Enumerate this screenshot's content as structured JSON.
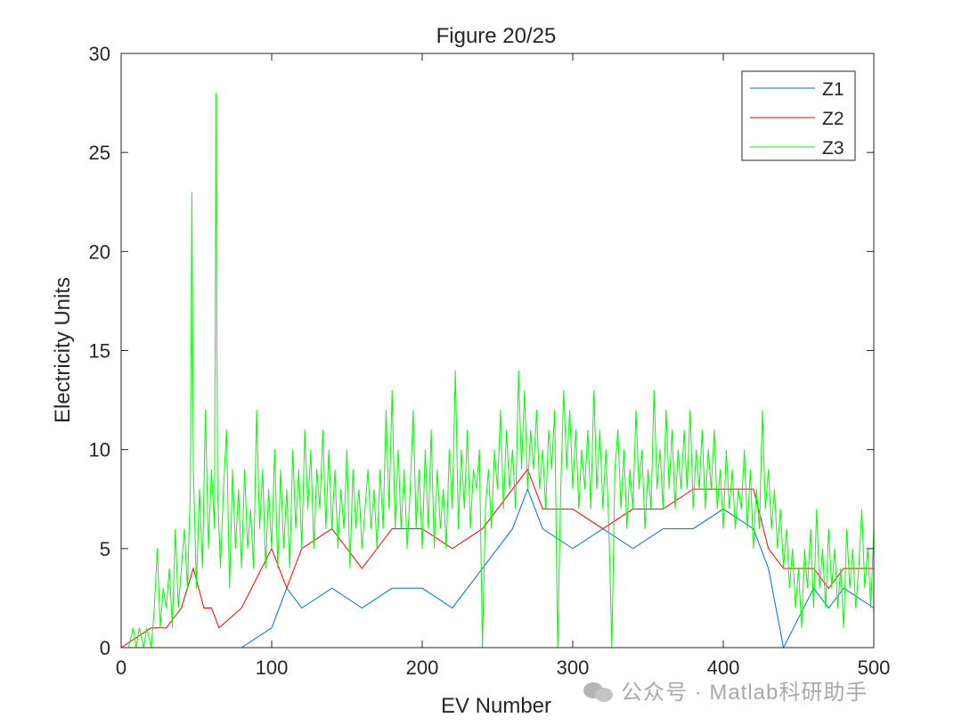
{
  "chart_data": {
    "type": "line",
    "title": "Figure 20/25",
    "xlabel": "EV Number",
    "ylabel": "Electricity Units",
    "xlim": [
      0,
      500
    ],
    "ylim": [
      0,
      30
    ],
    "xticks": [
      "0",
      "100",
      "200",
      "300",
      "400",
      "500"
    ],
    "yticks": [
      "0",
      "5",
      "10",
      "15",
      "20",
      "25",
      "30"
    ],
    "grid": false,
    "legend_position": "top-right",
    "series": [
      {
        "name": "Z1",
        "color": "#0072BD",
        "points": [
          [
            0,
            0
          ],
          [
            20,
            0
          ],
          [
            40,
            0
          ],
          [
            60,
            0
          ],
          [
            80,
            0
          ],
          [
            100,
            1
          ],
          [
            110,
            3
          ],
          [
            120,
            2
          ],
          [
            140,
            3
          ],
          [
            160,
            2
          ],
          [
            180,
            3
          ],
          [
            200,
            3
          ],
          [
            220,
            2
          ],
          [
            240,
            4
          ],
          [
            250,
            5
          ],
          [
            260,
            6
          ],
          [
            270,
            8
          ],
          [
            280,
            6
          ],
          [
            300,
            5
          ],
          [
            320,
            6
          ],
          [
            340,
            5
          ],
          [
            360,
            6
          ],
          [
            380,
            6
          ],
          [
            400,
            7
          ],
          [
            420,
            6
          ],
          [
            430,
            4
          ],
          [
            440,
            0
          ],
          [
            460,
            3
          ],
          [
            470,
            2
          ],
          [
            480,
            3
          ],
          [
            500,
            2
          ]
        ]
      },
      {
        "name": "Z2",
        "color": "#FF0000",
        "points": [
          [
            0,
            0
          ],
          [
            20,
            1
          ],
          [
            30,
            1
          ],
          [
            40,
            2
          ],
          [
            48,
            4
          ],
          [
            55,
            2
          ],
          [
            60,
            2
          ],
          [
            65,
            1
          ],
          [
            80,
            2
          ],
          [
            100,
            5
          ],
          [
            110,
            3
          ],
          [
            120,
            5
          ],
          [
            140,
            6
          ],
          [
            160,
            4
          ],
          [
            180,
            6
          ],
          [
            200,
            6
          ],
          [
            220,
            5
          ],
          [
            240,
            6
          ],
          [
            250,
            7
          ],
          [
            260,
            8
          ],
          [
            270,
            9
          ],
          [
            280,
            7
          ],
          [
            300,
            7
          ],
          [
            320,
            6
          ],
          [
            340,
            7
          ],
          [
            360,
            7
          ],
          [
            380,
            8
          ],
          [
            400,
            8
          ],
          [
            420,
            8
          ],
          [
            430,
            5
          ],
          [
            440,
            4
          ],
          [
            460,
            4
          ],
          [
            470,
            3
          ],
          [
            480,
            4
          ],
          [
            500,
            4
          ]
        ]
      },
      {
        "name": "Z3",
        "color": "#00FF00",
        "points": [
          [
            0,
            0
          ],
          [
            5,
            0
          ],
          [
            8,
            1
          ],
          [
            10,
            0
          ],
          [
            12,
            1
          ],
          [
            15,
            0
          ],
          [
            17,
            1
          ],
          [
            20,
            0
          ],
          [
            22,
            2
          ],
          [
            24,
            5
          ],
          [
            26,
            1
          ],
          [
            28,
            3
          ],
          [
            30,
            2
          ],
          [
            32,
            4
          ],
          [
            34,
            1
          ],
          [
            36,
            6
          ],
          [
            38,
            2
          ],
          [
            40,
            4
          ],
          [
            42,
            6
          ],
          [
            44,
            3
          ],
          [
            46,
            8
          ],
          [
            47,
            23
          ],
          [
            48,
            9
          ],
          [
            50,
            3
          ],
          [
            52,
            8
          ],
          [
            54,
            4
          ],
          [
            56,
            12
          ],
          [
            58,
            5
          ],
          [
            60,
            9
          ],
          [
            62,
            6
          ],
          [
            63,
            28
          ],
          [
            64,
            8
          ],
          [
            66,
            4
          ],
          [
            68,
            8
          ],
          [
            70,
            11
          ],
          [
            72,
            3
          ],
          [
            74,
            9
          ],
          [
            76,
            5
          ],
          [
            78,
            8
          ],
          [
            80,
            4
          ],
          [
            82,
            9
          ],
          [
            84,
            5
          ],
          [
            86,
            7
          ],
          [
            88,
            4
          ],
          [
            90,
            12
          ],
          [
            92,
            6
          ],
          [
            94,
            9
          ],
          [
            96,
            4
          ],
          [
            98,
            8
          ],
          [
            100,
            5
          ],
          [
            102,
            10
          ],
          [
            104,
            4
          ],
          [
            106,
            9
          ],
          [
            108,
            5
          ],
          [
            110,
            8
          ],
          [
            112,
            4
          ],
          [
            114,
            10
          ],
          [
            116,
            6
          ],
          [
            118,
            9
          ],
          [
            120,
            5
          ],
          [
            122,
            11
          ],
          [
            124,
            7
          ],
          [
            126,
            10
          ],
          [
            128,
            5
          ],
          [
            130,
            9
          ],
          [
            132,
            7
          ],
          [
            134,
            11
          ],
          [
            136,
            6
          ],
          [
            138,
            10
          ],
          [
            140,
            6
          ],
          [
            142,
            9
          ],
          [
            144,
            5
          ],
          [
            146,
            8
          ],
          [
            148,
            6
          ],
          [
            150,
            10
          ],
          [
            152,
            4
          ],
          [
            154,
            9
          ],
          [
            156,
            6
          ],
          [
            158,
            8
          ],
          [
            160,
            5
          ],
          [
            162,
            7
          ],
          [
            164,
            9
          ],
          [
            166,
            6
          ],
          [
            168,
            8
          ],
          [
            170,
            5
          ],
          [
            172,
            9
          ],
          [
            174,
            6
          ],
          [
            176,
            12
          ],
          [
            178,
            7
          ],
          [
            180,
            13
          ],
          [
            182,
            6
          ],
          [
            184,
            10
          ],
          [
            186,
            6
          ],
          [
            188,
            9
          ],
          [
            190,
            5
          ],
          [
            192,
            8
          ],
          [
            194,
            12
          ],
          [
            196,
            6
          ],
          [
            198,
            9
          ],
          [
            200,
            5
          ],
          [
            202,
            10
          ],
          [
            204,
            6
          ],
          [
            206,
            11
          ],
          [
            208,
            5
          ],
          [
            210,
            9
          ],
          [
            212,
            6
          ],
          [
            214,
            8
          ],
          [
            216,
            5
          ],
          [
            218,
            10
          ],
          [
            220,
            7
          ],
          [
            222,
            14
          ],
          [
            224,
            6
          ],
          [
            226,
            10
          ],
          [
            228,
            7
          ],
          [
            230,
            11
          ],
          [
            232,
            6
          ],
          [
            234,
            9
          ],
          [
            236,
            8
          ],
          [
            238,
            10
          ],
          [
            240,
            0
          ],
          [
            242,
            7
          ],
          [
            244,
            9
          ],
          [
            246,
            6
          ],
          [
            248,
            10
          ],
          [
            250,
            8
          ],
          [
            252,
            12
          ],
          [
            254,
            7
          ],
          [
            256,
            11
          ],
          [
            258,
            8
          ],
          [
            260,
            10
          ],
          [
            262,
            7
          ],
          [
            264,
            14
          ],
          [
            266,
            9
          ],
          [
            268,
            13
          ],
          [
            270,
            8
          ],
          [
            272,
            11
          ],
          [
            274,
            9
          ],
          [
            276,
            12
          ],
          [
            278,
            8
          ],
          [
            280,
            10
          ],
          [
            282,
            7
          ],
          [
            284,
            11
          ],
          [
            286,
            9
          ],
          [
            288,
            12
          ],
          [
            290,
            0
          ],
          [
            292,
            8
          ],
          [
            294,
            13
          ],
          [
            296,
            9
          ],
          [
            298,
            12
          ],
          [
            300,
            8
          ],
          [
            302,
            11
          ],
          [
            304,
            7
          ],
          [
            306,
            10
          ],
          [
            308,
            8
          ],
          [
            310,
            11
          ],
          [
            312,
            7
          ],
          [
            314,
            13
          ],
          [
            316,
            8
          ],
          [
            318,
            11
          ],
          [
            320,
            7
          ],
          [
            322,
            10
          ],
          [
            324,
            6
          ],
          [
            326,
            0
          ],
          [
            328,
            9
          ],
          [
            330,
            11
          ],
          [
            332,
            7
          ],
          [
            334,
            10
          ],
          [
            336,
            6
          ],
          [
            338,
            9
          ],
          [
            340,
            7
          ],
          [
            342,
            12
          ],
          [
            344,
            8
          ],
          [
            346,
            10
          ],
          [
            348,
            6
          ],
          [
            350,
            9
          ],
          [
            352,
            7
          ],
          [
            354,
            13
          ],
          [
            356,
            8
          ],
          [
            358,
            10
          ],
          [
            360,
            7
          ],
          [
            362,
            12
          ],
          [
            364,
            8
          ],
          [
            366,
            11
          ],
          [
            368,
            7
          ],
          [
            370,
            10
          ],
          [
            372,
            8
          ],
          [
            374,
            11
          ],
          [
            376,
            8
          ],
          [
            378,
            12
          ],
          [
            380,
            7
          ],
          [
            382,
            10
          ],
          [
            384,
            8
          ],
          [
            386,
            11
          ],
          [
            388,
            7
          ],
          [
            390,
            10
          ],
          [
            392,
            8
          ],
          [
            394,
            11
          ],
          [
            396,
            7
          ],
          [
            398,
            9
          ],
          [
            400,
            6
          ],
          [
            402,
            10
          ],
          [
            404,
            7
          ],
          [
            406,
            9
          ],
          [
            408,
            6
          ],
          [
            410,
            8
          ],
          [
            412,
            7
          ],
          [
            414,
            10
          ],
          [
            416,
            6
          ],
          [
            418,
            9
          ],
          [
            420,
            5
          ],
          [
            422,
            8
          ],
          [
            424,
            6
          ],
          [
            426,
            12
          ],
          [
            428,
            7
          ],
          [
            430,
            9
          ],
          [
            432,
            6
          ],
          [
            434,
            8
          ],
          [
            436,
            5
          ],
          [
            438,
            7
          ],
          [
            440,
            4
          ],
          [
            442,
            6
          ],
          [
            444,
            3
          ],
          [
            446,
            5
          ],
          [
            448,
            2
          ],
          [
            450,
            4
          ],
          [
            452,
            1
          ],
          [
            454,
            5
          ],
          [
            456,
            3
          ],
          [
            458,
            6
          ],
          [
            460,
            2
          ],
          [
            462,
            7
          ],
          [
            464,
            3
          ],
          [
            466,
            5
          ],
          [
            468,
            2
          ],
          [
            470,
            6
          ],
          [
            472,
            3
          ],
          [
            474,
            5
          ],
          [
            476,
            2
          ],
          [
            478,
            4
          ],
          [
            480,
            1
          ],
          [
            482,
            6
          ],
          [
            484,
            3
          ],
          [
            486,
            5
          ],
          [
            488,
            2
          ],
          [
            490,
            4
          ],
          [
            492,
            7
          ],
          [
            494,
            3
          ],
          [
            496,
            5
          ],
          [
            498,
            2
          ],
          [
            500,
            6
          ]
        ]
      }
    ]
  },
  "watermark": {
    "text": "公众号 · Matlab科研助手"
  }
}
